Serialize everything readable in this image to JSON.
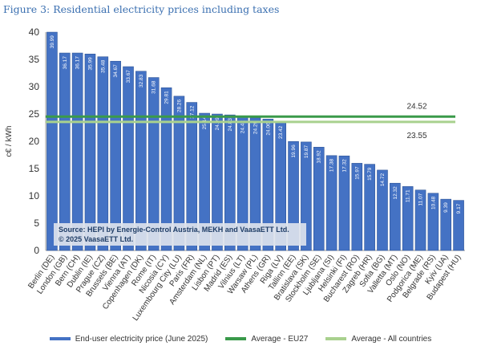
{
  "figure_title": "Figure 3: Residential electricity prices including taxes",
  "source_line1": "Source: HEPI by Energie-Control Austria, MEKH and VaasaETT Ltd.",
  "source_line2": "© 2025 VaasaETT Ltd.",
  "colors": {
    "bar": "#4472c4",
    "bar_edge": "#2f5597",
    "eu27": "#3a9a4a",
    "all": "#a9d18e",
    "grid": "#d9d9d9"
  },
  "legend": {
    "bars": "End-user electricity price (June 2025)",
    "eu27": "Average - EU27",
    "all": "Average - All countries"
  },
  "chart_data": {
    "type": "bar",
    "ylabel": "c€ / kWh",
    "ylim": [
      0,
      40
    ],
    "yticks": [
      0,
      5,
      10,
      15,
      20,
      25,
      30,
      35,
      40
    ],
    "grid": false,
    "legend_position": "bottom",
    "categories": [
      "Berlin (DE)",
      "London (GB)",
      "Bern (CH)",
      "Dublin (IE)",
      "Prague (CZ)",
      "Brussels (BE)",
      "Vienna (AT)",
      "Copenhagen (DK)",
      "Rome (IT)",
      "Nicosia (CY)",
      "Luxembourg City (LU)",
      "Paris (FR)",
      "Amsterdam (NL)",
      "Lisbon (PT)",
      "Madrid (ES)",
      "Vilnius (LT)",
      "Warsaw (PL)",
      "Athens (GR)",
      "Riga (LV)",
      "Tallinn (EE)",
      "Bratislava (SK)",
      "Stockholm (SE)",
      "Ljubljana (SI)",
      "Helsinki (FI)",
      "Bucharest (RO)",
      "Zagreb (HR)",
      "Sofia (BG)",
      "Valletta (MT)",
      "Oslo (NO)",
      "Podgorica (ME)",
      "Belgrade (RS)",
      "Kyiv (UA)",
      "Budapest (HU)"
    ],
    "values": [
      39.99,
      36.17,
      36.17,
      35.99,
      35.48,
      34.67,
      33.67,
      32.83,
      31.68,
      29.81,
      28.26,
      27.12,
      25.14,
      24.99,
      24.83,
      24.42,
      24.29,
      24.06,
      23.42,
      19.96,
      19.87,
      18.92,
      17.38,
      17.32,
      15.97,
      15.79,
      14.72,
      12.32,
      11.71,
      11.07,
      10.48,
      9.39,
      9.17
    ],
    "value_labels": [
      "39.99",
      "36.17",
      "36.17",
      "35.99",
      "35.48",
      "34.67",
      "33.67",
      "32.83",
      "31.68",
      "29.81",
      "28.26",
      "27.12",
      "25.14",
      "24.99",
      "24.83",
      "24.42",
      "24.29",
      "24.06",
      "23.42",
      "19.96",
      "19.87",
      "18.92",
      "17.38",
      "17.32",
      "15.97",
      "15.79",
      "14.72",
      "12.32",
      "11.71",
      "11.07",
      "10.48",
      "9.39",
      "9.17"
    ],
    "averages": [
      {
        "name": "Average - EU27",
        "value": 24.52,
        "label": "24.52"
      },
      {
        "name": "Average - All countries",
        "value": 23.55,
        "label": "23.55"
      }
    ]
  }
}
